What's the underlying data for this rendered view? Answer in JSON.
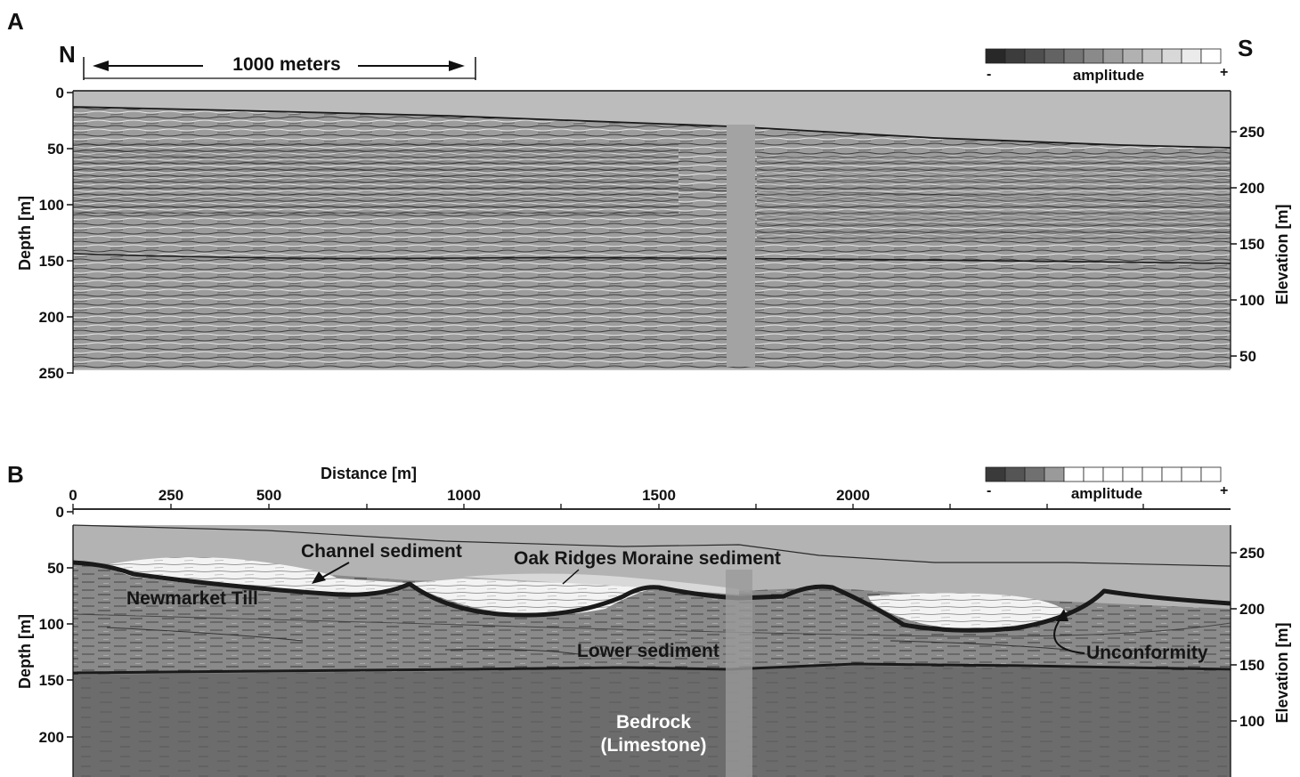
{
  "panel_a": {
    "letter": "A",
    "north": "N",
    "south": "S",
    "scale_bar": "1000 meters",
    "legend": {
      "label": "amplitude",
      "minus": "-",
      "plus": "+"
    },
    "depth_axis": {
      "label": "Depth [m]",
      "ticks": [
        "0",
        "50",
        "100",
        "150",
        "200",
        "250"
      ]
    },
    "elevation_axis": {
      "label": "Elevation [m]",
      "ticks": [
        "250",
        "200",
        "150",
        "100",
        "50"
      ]
    }
  },
  "panel_b": {
    "letter": "B",
    "distance_axis": {
      "label": "Distance [m]",
      "ticks": [
        "0",
        "250",
        "500",
        "1000",
        "1500",
        "2000"
      ]
    },
    "legend": {
      "label": "amplitude",
      "minus": "-",
      "plus": "+"
    },
    "depth_axis": {
      "label": "Depth [m]",
      "ticks": [
        "0",
        "50",
        "100",
        "150",
        "200"
      ]
    },
    "elevation_axis": {
      "label": "Elevation [m]",
      "ticks": [
        "250",
        "200",
        "150",
        "100"
      ]
    },
    "annotations": {
      "channel": "Channel sediment",
      "moraine": "Oak Ridges Moraine sediment",
      "till": "Newmarket Till",
      "lower": "Lower sediment",
      "unconformity": "Unconformity",
      "bedrock_1": "Bedrock",
      "bedrock_2": "(Limestone)"
    }
  },
  "colors": {
    "water": "#bcbcbc",
    "section_gray": "#9a9a9a",
    "bedrock": "#6e6e6e",
    "channel_fill": "#f2f2f2",
    "horizon": "#1a1a1a"
  }
}
